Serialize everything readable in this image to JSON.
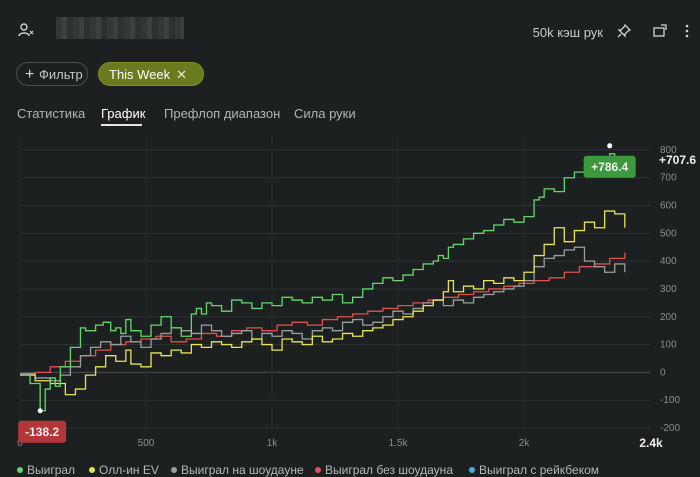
{
  "header": {
    "table_name": "50k кэш рук",
    "icons": [
      "user-icon",
      "pin-icon",
      "share-icon",
      "more-vertical-icon"
    ]
  },
  "filters": {
    "filter_label": "Фильтр",
    "active_chip": "This Week"
  },
  "tabs": [
    {
      "label": "Статистика",
      "active": false
    },
    {
      "label": "График",
      "active": true
    },
    {
      "label": "Префлоп диапазон",
      "active": false
    },
    {
      "label": "Сила руки",
      "active": false
    }
  ],
  "chart_data": {
    "type": "line",
    "xlim": [
      0,
      2500
    ],
    "ylim": [
      -200,
      850
    ],
    "x_ticks": [
      {
        "value": 0,
        "label": "0"
      },
      {
        "value": 500,
        "label": "500"
      },
      {
        "value": 1000,
        "label": "1k"
      },
      {
        "value": 1500,
        "label": "1.5k"
      },
      {
        "value": 2000,
        "label": "2k"
      }
    ],
    "x_end_label": "2.4k",
    "y_ticks": [
      -200,
      -100,
      0,
      100,
      200,
      300,
      400,
      500,
      600,
      700,
      800
    ],
    "grid": true,
    "max_label": "+786.4",
    "min_label": "-138.2",
    "final_label": "+707.6",
    "colors": {
      "green": "#63d86a",
      "yellow": "#e8e255",
      "grey": "#9a9e9e",
      "red": "#e0504e",
      "blue": "#4aa8e8",
      "max_badge": "#3c9a3e",
      "min_badge": "#b5363a"
    },
    "series": [
      {
        "name": "Выиграл",
        "color": "#63d86a",
        "x": [
          0,
          40,
          80,
          100,
          120,
          140,
          160,
          200,
          240,
          260,
          300,
          330,
          360,
          380,
          400,
          420,
          440,
          480,
          520,
          560,
          600,
          640,
          680,
          700,
          720,
          740,
          760,
          800,
          840,
          880,
          920,
          960,
          1000,
          1040,
          1080,
          1120,
          1160,
          1200,
          1240,
          1280,
          1320,
          1360,
          1400,
          1440,
          1480,
          1520,
          1560,
          1600,
          1640,
          1660,
          1680,
          1700,
          1720,
          1760,
          1800,
          1840,
          1880,
          1920,
          1960,
          2000,
          2040,
          2060,
          2080,
          2120,
          2160,
          2200,
          2240,
          2260,
          2280,
          2320,
          2340,
          2360,
          2380,
          2400
        ],
        "y": [
          -10,
          -40,
          -138,
          -60,
          -20,
          -50,
          20,
          90,
          160,
          150,
          170,
          180,
          150,
          160,
          140,
          190,
          150,
          130,
          170,
          200,
          160,
          130,
          210,
          230,
          210,
          250,
          240,
          220,
          260,
          250,
          230,
          250,
          240,
          270,
          260,
          250,
          270,
          260,
          280,
          250,
          270,
          300,
          320,
          340,
          330,
          350,
          370,
          390,
          400,
          420,
          410,
          450,
          460,
          480,
          500,
          510,
          530,
          550,
          540,
          560,
          620,
          630,
          660,
          650,
          700,
          720,
          740,
          760,
          740,
          770,
          786,
          740,
          720,
          707.6
        ]
      },
      {
        "name": "Олл-ин EV",
        "color": "#e8e255",
        "x": [
          0,
          60,
          120,
          180,
          220,
          260,
          300,
          340,
          380,
          420,
          440,
          480,
          520,
          560,
          600,
          640,
          680,
          720,
          760,
          800,
          840,
          880,
          920,
          960,
          1000,
          1040,
          1080,
          1120,
          1160,
          1200,
          1240,
          1280,
          1320,
          1360,
          1400,
          1440,
          1480,
          1520,
          1560,
          1600,
          1640,
          1680,
          1700,
          1720,
          1760,
          1800,
          1840,
          1880,
          1920,
          1960,
          2000,
          2040,
          2080,
          2120,
          2160,
          2200,
          2240,
          2280,
          2320,
          2360,
          2400
        ],
        "y": [
          -10,
          -30,
          -40,
          -80,
          -60,
          -10,
          20,
          60,
          40,
          80,
          30,
          20,
          70,
          60,
          80,
          70,
          100,
          90,
          110,
          100,
          90,
          110,
          120,
          100,
          80,
          120,
          110,
          100,
          130,
          110,
          120,
          140,
          130,
          150,
          160,
          170,
          190,
          200,
          220,
          240,
          260,
          290,
          330,
          290,
          310,
          300,
          330,
          320,
          340,
          330,
          360,
          420,
          460,
          520,
          470,
          510,
          540,
          520,
          580,
          570,
          520
        ]
      },
      {
        "name": "Выиграл на шоудауне",
        "color": "#9a9e9e",
        "x": [
          0,
          60,
          120,
          160,
          200,
          240,
          280,
          320,
          360,
          400,
          440,
          480,
          520,
          560,
          600,
          640,
          680,
          720,
          760,
          800,
          840,
          880,
          920,
          960,
          1000,
          1040,
          1080,
          1120,
          1160,
          1200,
          1240,
          1280,
          1320,
          1360,
          1400,
          1440,
          1480,
          1520,
          1560,
          1600,
          1640,
          1680,
          1720,
          1760,
          1800,
          1840,
          1880,
          1920,
          1960,
          2000,
          2040,
          2080,
          2120,
          2160,
          2200,
          2240,
          2280,
          2320,
          2360,
          2400
        ],
        "y": [
          -5,
          -20,
          -30,
          -10,
          20,
          60,
          90,
          110,
          100,
          130,
          110,
          90,
          120,
          140,
          160,
          150,
          140,
          170,
          150,
          130,
          140,
          150,
          120,
          140,
          130,
          150,
          140,
          120,
          150,
          160,
          150,
          180,
          190,
          170,
          180,
          200,
          220,
          210,
          230,
          250,
          260,
          240,
          260,
          250,
          270,
          280,
          290,
          300,
          310,
          330,
          380,
          410,
          420,
          440,
          450,
          400,
          380,
          360,
          390,
          360
        ]
      },
      {
        "name": "Выиграл без шоудауна",
        "color": "#e0504e",
        "x": [
          0,
          60,
          120,
          180,
          240,
          300,
          360,
          420,
          480,
          540,
          600,
          660,
          720,
          780,
          840,
          900,
          960,
          1020,
          1080,
          1140,
          1200,
          1260,
          1320,
          1380,
          1440,
          1500,
          1560,
          1620,
          1680,
          1740,
          1800,
          1860,
          1920,
          1980,
          2040,
          2100,
          2160,
          2220,
          2280,
          2340,
          2400
        ],
        "y": [
          -5,
          0,
          20,
          40,
          60,
          80,
          100,
          110,
          120,
          130,
          110,
          120,
          140,
          130,
          150,
          160,
          150,
          170,
          180,
          170,
          190,
          200,
          210,
          220,
          230,
          240,
          250,
          260,
          270,
          280,
          290,
          300,
          310,
          320,
          330,
          340,
          360,
          380,
          390,
          410,
          430
        ]
      },
      {
        "name": "Выиграл с рейкбеком",
        "color": "#4aa8e8",
        "x": [],
        "y": []
      }
    ]
  }
}
